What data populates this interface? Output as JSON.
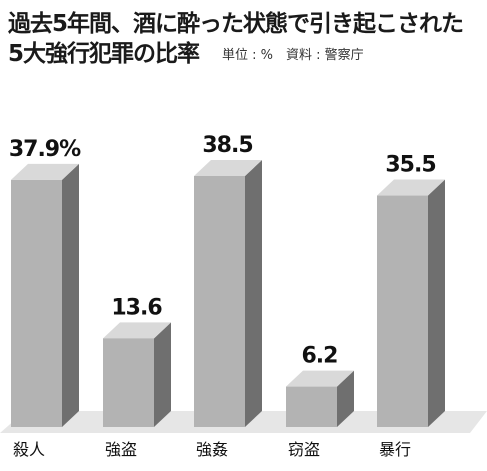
{
  "title": "過去5年間、酒に酔った状態で引き起こされた",
  "title_line2": "5大強行犯罪の比率",
  "subtitle": "単位 : %　資料 : 警察庁",
  "colors": {
    "bar_front": "#b3b3b3",
    "bar_side": "#6f6f6f",
    "bar_top": "#d9d9d9",
    "floor": "#e6e6e6"
  },
  "chart_data": {
    "type": "bar",
    "categories": [
      "殺人",
      "強盗",
      "強姦",
      "窃盗",
      "暴行"
    ],
    "values": [
      37.9,
      13.6,
      38.5,
      6.2,
      35.5
    ],
    "value_labels": [
      "37.9%",
      "13.6",
      "38.5",
      "6.2",
      "35.5"
    ],
    "title": "過去5年間、酒に酔った状態で引き起こされた5大強行犯罪の比率",
    "ylabel": "",
    "ylim": [
      0,
      38.5
    ]
  }
}
